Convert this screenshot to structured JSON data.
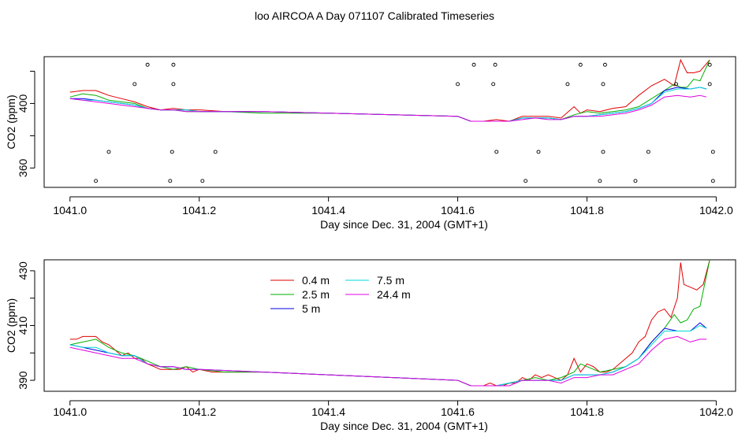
{
  "title": "loo AIRCOA A  Day 071107  Calibrated Timeseries",
  "colors": {
    "0.4 m": "#e00000",
    "2.5 m": "#00b000",
    "5 m": "#0000e0",
    "7.5 m": "#00d8d8",
    "24.4 m": "#e000e0"
  },
  "chart_data": [
    {
      "type": "line",
      "title": "",
      "xlabel": "Day since Dec. 31, 2004 (GMT+1)",
      "ylabel": "CO2 (ppm)",
      "xlim": [
        1040.96,
        1042.03
      ],
      "ylim": [
        348,
        429
      ],
      "xticks": [
        1041.0,
        1041.2,
        1041.4,
        1041.6,
        1041.8,
        1042.0
      ],
      "xtick_labels": [
        "1041.0",
        "1041.2",
        "1041.4",
        "1041.6",
        "1041.8",
        "1042.0"
      ],
      "yticks": [
        360,
        380,
        400,
        420
      ],
      "ytick_labels": [
        "360",
        "",
        "400",
        ""
      ],
      "grid": false,
      "legend": null,
      "series": [
        {
          "name": "0.4 m",
          "x": [
            1041.0,
            1041.02,
            1041.04,
            1041.06,
            1041.08,
            1041.1,
            1041.12,
            1041.14,
            1041.16,
            1041.18,
            1041.2,
            1041.24,
            1041.3,
            1041.4,
            1041.5,
            1041.6,
            1041.62,
            1041.64,
            1041.66,
            1041.68,
            1041.7,
            1041.72,
            1041.74,
            1041.76,
            1041.78,
            1041.79,
            1041.8,
            1041.82,
            1041.84,
            1041.86,
            1041.88,
            1041.9,
            1041.92,
            1041.935,
            1041.945,
            1041.955,
            1041.965,
            1041.975,
            1041.99
          ],
          "values": [
            407,
            408,
            408,
            405,
            403,
            401,
            398,
            396,
            397,
            396,
            396,
            395,
            395,
            394,
            393,
            392,
            389,
            389,
            390,
            389,
            392,
            392,
            392,
            391,
            398,
            394,
            396,
            395,
            397,
            398,
            405,
            411,
            415,
            411,
            427,
            419,
            419,
            420,
            427
          ]
        },
        {
          "name": "2.5 m",
          "x": [
            1041.0,
            1041.02,
            1041.04,
            1041.06,
            1041.08,
            1041.1,
            1041.12,
            1041.14,
            1041.16,
            1041.18,
            1041.2,
            1041.24,
            1041.3,
            1041.4,
            1041.5,
            1041.6,
            1041.62,
            1041.64,
            1041.66,
            1041.68,
            1041.7,
            1041.72,
            1041.74,
            1041.76,
            1041.78,
            1041.8,
            1041.82,
            1041.84,
            1041.86,
            1041.88,
            1041.9,
            1041.92,
            1041.935,
            1041.945,
            1041.955,
            1041.965,
            1041.975,
            1041.99
          ],
          "values": [
            404,
            406,
            405,
            402,
            401,
            400,
            397,
            396,
            396,
            395,
            395,
            395,
            394,
            394,
            393,
            392,
            389,
            389,
            389,
            389,
            391,
            391,
            391,
            390,
            393,
            395,
            394,
            395,
            396,
            398,
            403,
            408,
            412,
            410,
            410,
            415,
            414,
            427
          ]
        },
        {
          "name": "5 m",
          "x": [
            1041.0,
            1041.02,
            1041.04,
            1041.06,
            1041.08,
            1041.1,
            1041.12,
            1041.14,
            1041.16,
            1041.18,
            1041.2,
            1041.3,
            1041.4,
            1041.5,
            1041.6,
            1041.62,
            1041.64,
            1041.66,
            1041.68,
            1041.7,
            1041.72,
            1041.74,
            1041.76,
            1041.78,
            1041.8,
            1041.82,
            1041.84,
            1041.86,
            1041.88,
            1041.9,
            1041.92,
            1041.94,
            1041.96,
            1041.975,
            1041.985
          ],
          "values": [
            403,
            403,
            402,
            401,
            400,
            399,
            397,
            396,
            396,
            396,
            395,
            395,
            394,
            393,
            392,
            389,
            389,
            389,
            389,
            391,
            391,
            391,
            390,
            392,
            392,
            393,
            394,
            395,
            397,
            400,
            408,
            410,
            409,
            410,
            409
          ]
        },
        {
          "name": "7.5 m",
          "x": [
            1041.0,
            1041.02,
            1041.04,
            1041.06,
            1041.08,
            1041.1,
            1041.12,
            1041.14,
            1041.16,
            1041.18,
            1041.2,
            1041.3,
            1041.4,
            1041.5,
            1041.6,
            1041.62,
            1041.64,
            1041.66,
            1041.68,
            1041.7,
            1041.72,
            1041.74,
            1041.76,
            1041.78,
            1041.8,
            1041.82,
            1041.84,
            1041.86,
            1041.88,
            1041.9,
            1041.92,
            1041.94,
            1041.96,
            1041.975,
            1041.985
          ],
          "values": [
            403,
            402,
            402,
            401,
            400,
            399,
            397,
            396,
            396,
            396,
            395,
            395,
            394,
            393,
            392,
            389,
            389,
            389,
            389,
            391,
            391,
            391,
            390,
            392,
            392,
            393,
            394,
            395,
            397,
            400,
            407,
            409,
            409,
            410,
            409
          ]
        },
        {
          "name": "24.4 m",
          "x": [
            1041.0,
            1041.02,
            1041.04,
            1041.06,
            1041.08,
            1041.1,
            1041.12,
            1041.14,
            1041.16,
            1041.18,
            1041.2,
            1041.3,
            1041.4,
            1041.5,
            1041.6,
            1041.62,
            1041.64,
            1041.66,
            1041.68,
            1041.7,
            1041.72,
            1041.74,
            1041.76,
            1041.78,
            1041.8,
            1041.82,
            1041.84,
            1041.86,
            1041.88,
            1041.9,
            1041.92,
            1041.94,
            1041.96,
            1041.975,
            1041.985
          ],
          "values": [
            403,
            402,
            401,
            400,
            399,
            398,
            397,
            396,
            396,
            395,
            395,
            395,
            394,
            393,
            392,
            389,
            389,
            389,
            389,
            390,
            391,
            390,
            390,
            392,
            392,
            392,
            393,
            394,
            396,
            399,
            404,
            405,
            404,
            405,
            404
          ]
        },
        {
          "name": "",
          "style": "points",
          "x": [
            1041.04,
            1041.06,
            1041.1,
            1041.12,
            1041.155,
            1041.158,
            1041.16,
            1041.16,
            1041.205,
            1041.225,
            1041.6,
            1041.625,
            1041.655,
            1041.658,
            1041.66,
            1041.705,
            1041.725,
            1041.77,
            1041.79,
            1041.82,
            1041.825,
            1041.825,
            1041.828,
            1041.875,
            1041.895,
            1041.938,
            1041.99,
            1041.99,
            1041.995,
            1041.995
          ],
          "values": [
            352,
            370,
            412,
            424,
            352,
            370,
            412,
            424,
            352,
            370,
            412,
            424,
            412,
            424,
            370,
            352,
            370,
            412,
            424,
            352,
            370,
            412,
            424,
            352,
            370,
            412,
            424,
            412,
            370,
            352
          ]
        }
      ]
    },
    {
      "type": "line",
      "title": "",
      "xlabel": "Day since Dec. 31, 2004 (GMT+1)",
      "ylabel": "CO2 (ppm)",
      "xlim": [
        1040.96,
        1042.03
      ],
      "ylim": [
        386,
        434
      ],
      "xticks": [
        1041.0,
        1041.2,
        1041.4,
        1041.6,
        1041.8,
        1042.0
      ],
      "xtick_labels": [
        "1041.0",
        "1041.2",
        "1041.4",
        "1041.6",
        "1041.8",
        "1042.0"
      ],
      "yticks": [
        390,
        400,
        410,
        420,
        430
      ],
      "ytick_labels": [
        "390",
        "",
        "410",
        "",
        "430"
      ],
      "grid": false,
      "legend": "top-left",
      "legend_entries": [
        "0.4 m",
        "2.5 m",
        "5 m",
        "7.5 m",
        "24.4 m"
      ],
      "series": [
        {
          "name": "0.4 m",
          "x": [
            1041.0,
            1041.01,
            1041.02,
            1041.03,
            1041.04,
            1041.05,
            1041.06,
            1041.07,
            1041.08,
            1041.09,
            1041.1,
            1041.11,
            1041.12,
            1041.13,
            1041.14,
            1041.15,
            1041.16,
            1041.17,
            1041.18,
            1041.19,
            1041.2,
            1041.22,
            1041.24,
            1041.26,
            1041.3,
            1041.4,
            1041.5,
            1041.6,
            1041.62,
            1041.64,
            1041.65,
            1041.66,
            1041.67,
            1041.68,
            1041.69,
            1041.7,
            1041.71,
            1041.72,
            1041.73,
            1041.74,
            1041.75,
            1041.76,
            1041.77,
            1041.78,
            1041.79,
            1041.8,
            1041.81,
            1041.82,
            1041.83,
            1041.84,
            1041.85,
            1041.86,
            1041.87,
            1041.88,
            1041.89,
            1041.9,
            1041.91,
            1041.92,
            1041.93,
            1041.94,
            1041.945,
            1041.95,
            1041.96,
            1041.97,
            1041.98,
            1041.99
          ],
          "values": [
            405,
            405,
            406,
            406,
            406,
            404,
            403,
            401,
            399,
            400,
            398,
            398,
            396,
            395,
            394,
            394,
            394,
            394,
            395,
            393,
            394,
            393,
            393,
            393,
            393,
            392,
            391,
            390,
            388,
            388,
            389,
            388,
            388,
            389,
            389,
            391,
            390,
            392,
            391,
            392,
            391,
            390,
            392,
            398,
            393,
            396,
            395,
            393,
            393,
            394,
            396,
            398,
            400,
            404,
            406,
            412,
            415,
            416,
            413,
            420,
            433,
            425,
            424,
            423,
            425,
            434
          ]
        },
        {
          "name": "2.5 m",
          "x": [
            1041.0,
            1041.02,
            1041.04,
            1041.06,
            1041.08,
            1041.1,
            1041.12,
            1041.14,
            1041.16,
            1041.18,
            1041.2,
            1041.24,
            1041.3,
            1041.4,
            1041.5,
            1041.6,
            1041.62,
            1041.64,
            1041.66,
            1041.68,
            1041.7,
            1041.72,
            1041.74,
            1041.76,
            1041.78,
            1041.79,
            1041.8,
            1041.82,
            1041.84,
            1041.86,
            1041.88,
            1041.9,
            1041.92,
            1041.935,
            1041.945,
            1041.955,
            1041.965,
            1041.975,
            1041.99
          ],
          "values": [
            403,
            404,
            405,
            402,
            400,
            399,
            397,
            395,
            394,
            395,
            394,
            393,
            393,
            392,
            391,
            390,
            388,
            388,
            388,
            389,
            390,
            391,
            390,
            391,
            393,
            396,
            395,
            393,
            394,
            395,
            398,
            404,
            409,
            414,
            411,
            412,
            416,
            417,
            434
          ]
        },
        {
          "name": "5 m",
          "x": [
            1041.0,
            1041.02,
            1041.04,
            1041.06,
            1041.08,
            1041.1,
            1041.12,
            1041.14,
            1041.16,
            1041.18,
            1041.2,
            1041.3,
            1041.4,
            1041.5,
            1041.6,
            1041.62,
            1041.64,
            1041.66,
            1041.68,
            1041.7,
            1041.72,
            1041.74,
            1041.76,
            1041.78,
            1041.8,
            1041.82,
            1041.84,
            1041.86,
            1041.88,
            1041.9,
            1041.92,
            1041.94,
            1041.96,
            1041.975,
            1041.985
          ],
          "values": [
            403,
            402,
            401,
            400,
            399,
            399,
            396,
            395,
            395,
            394,
            394,
            393,
            392,
            391,
            390,
            388,
            388,
            388,
            389,
            390,
            390,
            390,
            390,
            392,
            392,
            392,
            393,
            395,
            398,
            404,
            409,
            408,
            408,
            411,
            409
          ]
        },
        {
          "name": "7.5 m",
          "x": [
            1041.0,
            1041.02,
            1041.04,
            1041.06,
            1041.08,
            1041.1,
            1041.12,
            1041.14,
            1041.16,
            1041.18,
            1041.2,
            1041.3,
            1041.4,
            1041.5,
            1041.6,
            1041.62,
            1041.64,
            1041.66,
            1041.68,
            1041.7,
            1041.72,
            1041.74,
            1041.76,
            1041.78,
            1041.8,
            1041.82,
            1041.84,
            1041.86,
            1041.88,
            1041.9,
            1041.92,
            1041.94,
            1041.96,
            1041.975,
            1041.985
          ],
          "values": [
            403,
            402,
            402,
            400,
            399,
            399,
            396,
            395,
            395,
            394,
            394,
            393,
            392,
            391,
            390,
            388,
            388,
            388,
            389,
            390,
            390,
            390,
            390,
            392,
            392,
            392,
            393,
            395,
            398,
            403,
            408,
            408,
            408,
            410,
            409
          ]
        },
        {
          "name": "24.4 m",
          "x": [
            1041.0,
            1041.02,
            1041.04,
            1041.06,
            1041.08,
            1041.1,
            1041.12,
            1041.14,
            1041.16,
            1041.18,
            1041.2,
            1041.3,
            1041.4,
            1041.5,
            1041.6,
            1041.62,
            1041.64,
            1041.66,
            1041.68,
            1041.7,
            1041.72,
            1041.74,
            1041.76,
            1041.78,
            1041.8,
            1041.82,
            1041.84,
            1041.86,
            1041.88,
            1041.9,
            1041.92,
            1041.94,
            1041.96,
            1041.975,
            1041.985
          ],
          "values": [
            402,
            401,
            400,
            399,
            398,
            398,
            396,
            395,
            395,
            394,
            394,
            393,
            392,
            391,
            390,
            388,
            388,
            388,
            388,
            390,
            390,
            390,
            389,
            391,
            391,
            392,
            392,
            394,
            396,
            401,
            405,
            406,
            404,
            405,
            405
          ]
        }
      ]
    }
  ]
}
